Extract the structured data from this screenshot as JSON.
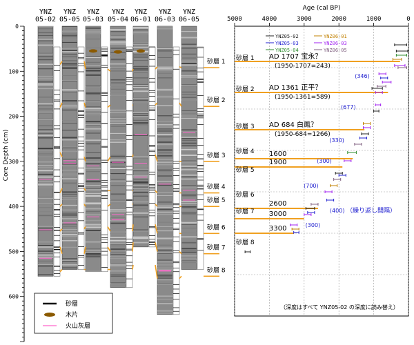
{
  "chart_data": [
    {
      "type": "core-log",
      "ylabel": "Core Depth (cm)",
      "ylim": [
        0,
        700
      ],
      "yticks": [
        0,
        100,
        200,
        300,
        400,
        500,
        600
      ],
      "cores": [
        {
          "name": "YNZ\n05-02",
          "bottom": 555
        },
        {
          "name": "YNZ\n05-05",
          "bottom": 540
        },
        {
          "name": "YNZ\n05-03",
          "bottom": 545
        },
        {
          "name": "YNZ\n05-04",
          "bottom": 580
        },
        {
          "name": "YNZ\n06-01",
          "bottom": 490
        },
        {
          "name": "YNZ\n06-03",
          "bottom": 640
        },
        {
          "name": "YNZ\n06-05",
          "bottom": 540
        }
      ],
      "sand_layers": [
        {
          "label": "砂層 1",
          "depths": [
            85,
            78,
            95,
            100,
            95,
            90,
            92
          ]
        },
        {
          "label": "砂層 2",
          "depths": [
            180,
            170,
            180,
            175,
            175,
            170,
            178
          ]
        },
        {
          "label": "砂層 3",
          "depths": [
            280,
            290,
            300,
            290,
            285,
            300,
            300
          ]
        },
        {
          "label": "砂層 4",
          "depths": [
            370,
            360,
            365,
            365,
            365,
            370,
            370
          ]
        },
        {
          "label": "砂層 5",
          "depths": [
            400,
            395,
            400,
            395,
            395,
            400,
            400
          ]
        },
        {
          "label": "砂層 6",
          "depths": [
            455,
            450,
            445,
            455,
            440,
            460,
            460
          ]
        },
        {
          "label": "砂層 7",
          "depths": [
            490,
            505,
            490,
            500,
            480,
            500,
            505
          ]
        },
        {
          "label": "砂層 8",
          "depths": [
            545,
            540,
            540,
            540,
            530,
            560,
            555
          ]
        }
      ],
      "wood_fragments": [
        {
          "core": 2,
          "depth": 55
        },
        {
          "core": 3,
          "depth": 57
        },
        {
          "core": 4,
          "depth": 55
        }
      ],
      "legend": [
        {
          "label": "砂層",
          "symbol": "line",
          "color": "#000000"
        },
        {
          "label": "木片",
          "symbol": "ellipse",
          "color": "#8b5a00"
        },
        {
          "label": "火山灰層",
          "symbol": "line",
          "color": "#ff66cc"
        }
      ]
    },
    {
      "type": "scatter",
      "xlabel": "Age (cal BP)",
      "ylabel": "",
      "xlim": [
        5000,
        0
      ],
      "ylim": [
        0,
        700
      ],
      "xticks": [
        5000,
        4000,
        3000,
        2000,
        1000,
        0
      ],
      "grid": true,
      "legend": [
        {
          "name": "YNZ05-02",
          "color": "#202020"
        },
        {
          "name": "YNZ05-03",
          "color": "#2020d0"
        },
        {
          "name": "YNZ05-04",
          "color": "#2e8b2e"
        },
        {
          "name": "YNZ06-01",
          "color": "#c08000"
        },
        {
          "name": "YNZ06-03",
          "color": "#a020f0"
        },
        {
          "name": "YNZ06-05",
          "color": "#806080"
        }
      ],
      "series": [
        {
          "name": "YNZ05-02",
          "points": [
            {
              "depth": 45,
              "min": 50,
              "max": 400
            },
            {
              "depth": 60,
              "min": 20,
              "max": 350
            },
            {
              "depth": 150,
              "min": 750,
              "max": 1050
            },
            {
              "depth": 205,
              "min": 850,
              "max": 1000
            },
            {
              "depth": 260,
              "min": 1150,
              "max": 1350
            },
            {
              "depth": 355,
              "min": 1900,
              "max": 2100
            },
            {
              "depth": 440,
              "min": 2700,
              "max": 2950
            },
            {
              "depth": 545,
              "min": 4550,
              "max": 4700
            }
          ]
        },
        {
          "name": "YNZ05-03",
          "points": [
            {
              "depth": 125,
              "min": 600,
              "max": 800
            },
            {
              "depth": 270,
              "min": 1200,
              "max": 1400
            },
            {
              "depth": 360,
              "min": 1800,
              "max": 2000
            },
            {
              "depth": 420,
              "min": 2150,
              "max": 2350
            },
            {
              "depth": 450,
              "min": 2700,
              "max": 2900
            },
            {
              "depth": 498,
              "min": 3150,
              "max": 3300
            }
          ]
        },
        {
          "name": "YNZ05-04",
          "points": [
            {
              "depth": 70,
              "min": 50,
              "max": 350
            },
            {
              "depth": 305,
              "min": 1500,
              "max": 1750
            }
          ]
        },
        {
          "name": "YNZ06-01",
          "points": [
            {
              "depth": 80,
              "min": 200,
              "max": 450
            },
            {
              "depth": 235,
              "min": 1100,
              "max": 1300
            },
            {
              "depth": 385,
              "min": 2050,
              "max": 2250
            },
            {
              "depth": 490,
              "min": 3150,
              "max": 3350
            }
          ]
        },
        {
          "name": "YNZ06-03",
          "points": [
            {
              "depth": 95,
              "min": 100,
              "max": 400
            },
            {
              "depth": 115,
              "min": 650,
              "max": 850
            },
            {
              "depth": 135,
              "min": 500,
              "max": 750
            },
            {
              "depth": 160,
              "min": 750,
              "max": 950
            },
            {
              "depth": 190,
              "min": 800,
              "max": 950
            },
            {
              "depth": 245,
              "min": 1100,
              "max": 1300
            },
            {
              "depth": 325,
              "min": 1650,
              "max": 1850
            },
            {
              "depth": 400,
              "min": 2200,
              "max": 2400
            },
            {
              "depth": 455,
              "min": 2800,
              "max": 3000
            },
            {
              "depth": 480,
              "min": 3200,
              "max": 3400
            }
          ]
        },
        {
          "name": "YNZ06-05",
          "points": [
            {
              "depth": 100,
              "min": 50,
              "max": 300
            },
            {
              "depth": 145,
              "min": 650,
              "max": 900
            },
            {
              "depth": 285,
              "min": 1350,
              "max": 1550
            },
            {
              "depth": 370,
              "min": 1950,
              "max": 2150
            },
            {
              "depth": 430,
              "min": 2600,
              "max": 2800
            }
          ]
        }
      ],
      "event_lines": [
        {
          "age_bp": 243,
          "depth": 85,
          "text": "AD 1707  宝永？",
          "sub": "(1950-1707=243)"
        },
        {
          "age_bp": 589,
          "depth": 160,
          "text": "AD 1361  正平？",
          "sub": "(1950-1361=589)"
        },
        {
          "age_bp": 1266,
          "depth": 250,
          "text": "AD  684  白鳳？",
          "sub": "(1950-684=1266)"
        },
        {
          "age_bp": 1600,
          "depth": 320,
          "text": "1600",
          "sub": ""
        },
        {
          "age_bp": 1900,
          "depth": 340,
          "text": "1900",
          "sub": ""
        },
        {
          "age_bp": 2600,
          "depth": 440,
          "text": "2600",
          "sub": ""
        },
        {
          "age_bp": 3000,
          "depth": 465,
          "text": "3000",
          "sub": ""
        },
        {
          "age_bp": 3300,
          "depth": 500,
          "text": "3300",
          "sub": ""
        }
      ],
      "event_labels": [
        "砂層 1",
        "砂層 2",
        "砂層 3",
        "砂層 4",
        "砂層 5",
        "砂層 6",
        "砂層 7",
        "砂層 8"
      ],
      "label_depths": [
        85,
        160,
        250,
        310,
        355,
        415,
        455,
        530
      ],
      "intervals": [
        {
          "text": "(346)",
          "age_bp": 1330,
          "depth": 125
        },
        {
          "text": "(677)",
          "age_bp": 1730,
          "depth": 200
        },
        {
          "text": "(330)",
          "age_bp": 2060,
          "depth": 280
        },
        {
          "text": "(300)",
          "age_bp": 2420,
          "depth": 330
        },
        {
          "text": "(700)",
          "age_bp": 2800,
          "depth": 390
        },
        {
          "text": "(400)",
          "age_bp": 2050,
          "depth": 450
        },
        {
          "text": "(300)",
          "age_bp": 2750,
          "depth": 485
        }
      ],
      "interval_note": "（繰り返し間隔）",
      "footnote": "（深度はすべて YNZ05-02 の深度に読み替え）"
    }
  ]
}
